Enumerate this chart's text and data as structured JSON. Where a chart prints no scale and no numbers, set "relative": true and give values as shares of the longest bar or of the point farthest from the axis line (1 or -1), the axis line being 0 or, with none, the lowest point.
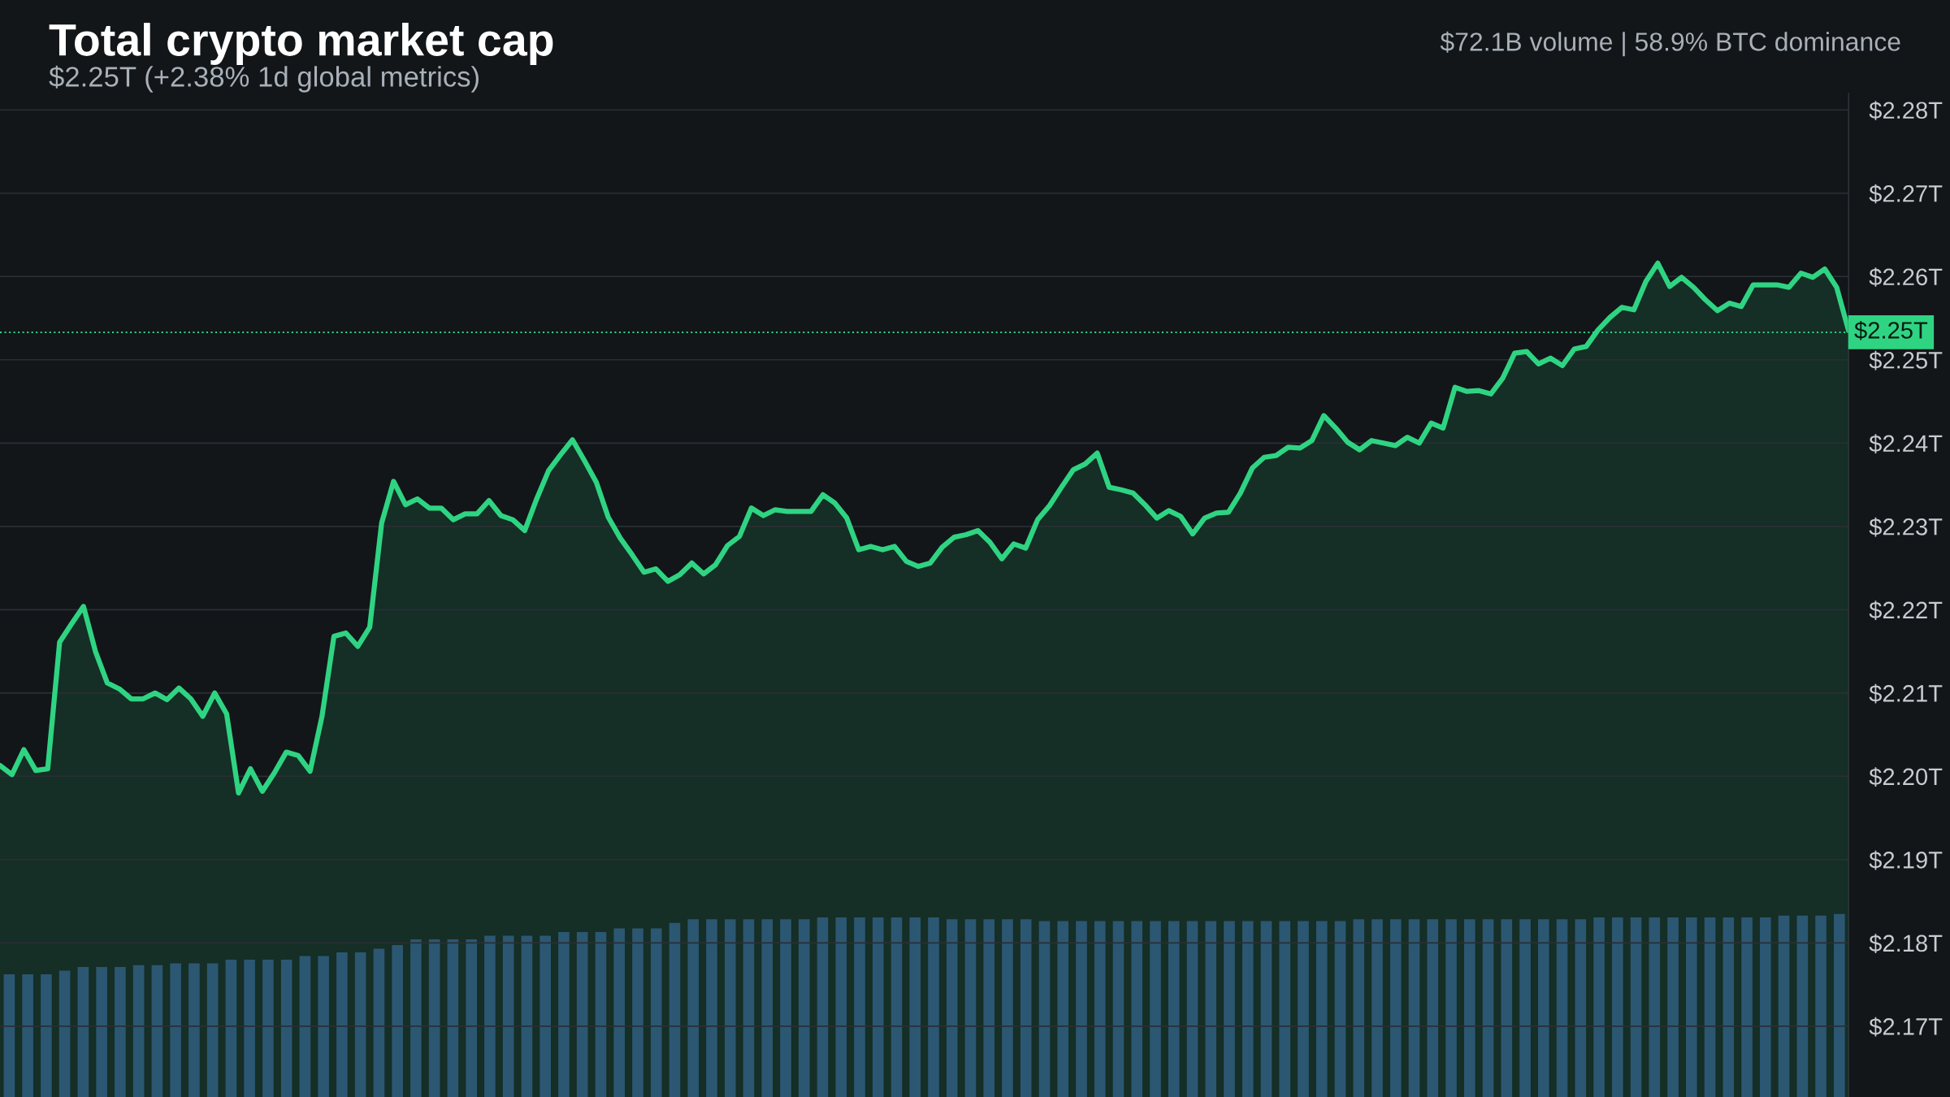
{
  "chart_data": [
    {
      "type": "area",
      "title": "Total crypto market cap",
      "subtitle": "$2.25T (+2.38% 1d global metrics)",
      "annotations": [
        "$72.1B volume | 58.9% BTC dominance"
      ],
      "categories": [
        null,
        null,
        null,
        null,
        null,
        null,
        null,
        null,
        null,
        null,
        null,
        null,
        null,
        null,
        null,
        null,
        null,
        null,
        null,
        null,
        null,
        null,
        null,
        null,
        null,
        null,
        null,
        null,
        null,
        null,
        null,
        null,
        null,
        null,
        null,
        null,
        null,
        null,
        null,
        null,
        null,
        null,
        null,
        null,
        null,
        null,
        null,
        null,
        null,
        null,
        null,
        null,
        null,
        null,
        null,
        null,
        null,
        null,
        null,
        null,
        null,
        null,
        null,
        null,
        null,
        null,
        null,
        null,
        null,
        null,
        null,
        null,
        null,
        null,
        null,
        null,
        null,
        null,
        null,
        null,
        null,
        null,
        null,
        null,
        null,
        null,
        null,
        null,
        null,
        null,
        null,
        null,
        null,
        null,
        null,
        null,
        null,
        null,
        null,
        null,
        null,
        null,
        null,
        null,
        null,
        null,
        null,
        null,
        null,
        null,
        null,
        null,
        null,
        null,
        null,
        null,
        null,
        null,
        null,
        null,
        null,
        null,
        null,
        null,
        null,
        null,
        null,
        null,
        null,
        null,
        null,
        null,
        null,
        null,
        null,
        null,
        null,
        null,
        null,
        null,
        null,
        null,
        null,
        null,
        null,
        null,
        null,
        null,
        null,
        null,
        null,
        null,
        null,
        null,
        null,
        null
      ],
      "series": [
        {
          "color": "#2fd482",
          "values": [
            2.2013,
            2.2002,
            2.2032,
            2.2007,
            2.2009,
            2.2161,
            2.2183,
            2.2204,
            2.215,
            2.2112,
            2.2105,
            2.2093,
            2.2093,
            2.21,
            2.2092,
            2.2106,
            2.2093,
            2.2072,
            2.21,
            2.2075,
            2.198,
            2.2009,
            2.1982,
            2.2004,
            2.2029,
            2.2025,
            2.2006,
            2.2072,
            2.2168,
            2.2172,
            2.2156,
            2.2179,
            2.2304,
            2.2354,
            2.2326,
            2.2333,
            2.2322,
            2.2322,
            2.2308,
            2.2315,
            2.2315,
            2.2331,
            2.2313,
            2.2308,
            2.2295,
            2.2333,
            2.2367,
            2.2386,
            2.2404,
            2.2379,
            2.2353,
            2.2311,
            2.2286,
            2.2266,
            2.2245,
            2.2249,
            2.2234,
            2.2242,
            2.2256,
            2.2243,
            2.2254,
            2.2277,
            2.2288,
            2.2322,
            2.2313,
            2.232,
            2.2318,
            2.2318,
            2.2318,
            2.2338,
            2.2328,
            2.231,
            2.2272,
            2.2276,
            2.2272,
            2.2276,
            2.2258,
            2.2252,
            2.2256,
            2.2275,
            2.2287,
            2.229,
            2.2295,
            2.2281,
            2.2261,
            2.2279,
            2.2274,
            2.2308,
            2.2325,
            2.2347,
            2.2368,
            2.2375,
            2.2388,
            2.2347,
            2.2344,
            2.234,
            2.2326,
            2.231,
            2.2319,
            2.2312,
            2.2291,
            2.231,
            2.2316,
            2.2317,
            2.234,
            2.237,
            2.2383,
            2.2385,
            2.2395,
            2.2394,
            2.2403,
            2.2433,
            2.2418,
            2.2401,
            2.2392,
            2.2403,
            2.24,
            2.2397,
            2.2407,
            2.24,
            2.2424,
            2.2418,
            2.2467,
            2.2462,
            2.2463,
            2.2459,
            2.2478,
            2.2508,
            2.251,
            2.2495,
            2.2502,
            2.2493,
            2.2513,
            2.2516,
            2.2536,
            2.2551,
            2.2563,
            2.256,
            2.2594,
            2.2616,
            2.2588,
            2.2599,
            2.2587,
            2.2572,
            2.2559,
            2.2568,
            2.2564,
            2.259,
            2.259,
            2.259,
            2.2587,
            2.2604,
            2.2599,
            2.2609,
            2.2587,
            2.2535
          ]
        }
      ],
      "ylim": [
        2.1615,
        2.282
      ],
      "yticks": [
        {
          "value": 2.17,
          "label": "$2.17T"
        },
        {
          "value": 2.18,
          "label": "$2.18T"
        },
        {
          "value": 2.19,
          "label": "$2.19T"
        },
        {
          "value": 2.2,
          "label": "$2.20T"
        },
        {
          "value": 2.21,
          "label": "$2.21T"
        },
        {
          "value": 2.22,
          "label": "$2.22T"
        },
        {
          "value": 2.23,
          "label": "$2.23T"
        },
        {
          "value": 2.24,
          "label": "$2.24T"
        },
        {
          "value": 2.25,
          "label": "$2.25T"
        },
        {
          "value": 2.26,
          "label": "$2.26T"
        },
        {
          "value": 2.27,
          "label": "$2.27T"
        },
        {
          "value": 2.28,
          "label": "$2.28T"
        }
      ],
      "ref_lines": [
        {
          "axis": "y",
          "value": 2.2533,
          "label": "$2.25T",
          "color": "#2fd482",
          "line_style": "dotted"
        }
      ],
      "grid": "y",
      "tick_labels": "y"
    },
    {
      "type": "bar",
      "relative": true,
      "color": "#2b4570",
      "categories": [
        null,
        null,
        null,
        null,
        null,
        null,
        null,
        null,
        null,
        null,
        null,
        null,
        null,
        null,
        null,
        null,
        null,
        null,
        null,
        null,
        null,
        null,
        null,
        null,
        null,
        null,
        null,
        null,
        null,
        null,
        null,
        null,
        null,
        null,
        null,
        null,
        null,
        null,
        null,
        null,
        null,
        null,
        null,
        null,
        null,
        null,
        null,
        null,
        null,
        null,
        null,
        null,
        null,
        null,
        null,
        null,
        null,
        null,
        null,
        null,
        null,
        null,
        null,
        null,
        null,
        null,
        null,
        null,
        null,
        null,
        null,
        null,
        null,
        null,
        null,
        null,
        null,
        null,
        null,
        null,
        null,
        null,
        null,
        null,
        null,
        null,
        null,
        null,
        null,
        null,
        null,
        null,
        null,
        null,
        null,
        null,
        null,
        null,
        null,
        null
      ],
      "values": [
        0.67,
        0.67,
        0.67,
        0.69,
        0.71,
        0.71,
        0.71,
        0.72,
        0.72,
        0.73,
        0.73,
        0.73,
        0.75,
        0.75,
        0.75,
        0.75,
        0.77,
        0.77,
        0.79,
        0.79,
        0.81,
        0.83,
        0.86,
        0.86,
        0.86,
        0.86,
        0.88,
        0.88,
        0.88,
        0.88,
        0.9,
        0.9,
        0.9,
        0.92,
        0.92,
        0.92,
        0.95,
        0.97,
        0.97,
        0.97,
        0.97,
        0.97,
        0.97,
        0.97,
        0.98,
        0.98,
        0.98,
        0.98,
        0.98,
        0.98,
        0.98,
        0.97,
        0.97,
        0.97,
        0.97,
        0.97,
        0.96,
        0.96,
        0.96,
        0.96,
        0.96,
        0.96,
        0.96,
        0.96,
        0.96,
        0.96,
        0.96,
        0.96,
        0.96,
        0.96,
        0.96,
        0.96,
        0.96,
        0.97,
        0.97,
        0.97,
        0.97,
        0.97,
        0.97,
        0.97,
        0.97,
        0.97,
        0.97,
        0.97,
        0.97,
        0.97,
        0.98,
        0.98,
        0.98,
        0.98,
        0.98,
        0.98,
        0.98,
        0.98,
        0.98,
        0.98,
        0.99,
        0.99,
        0.99,
        1
      ]
    }
  ]
}
